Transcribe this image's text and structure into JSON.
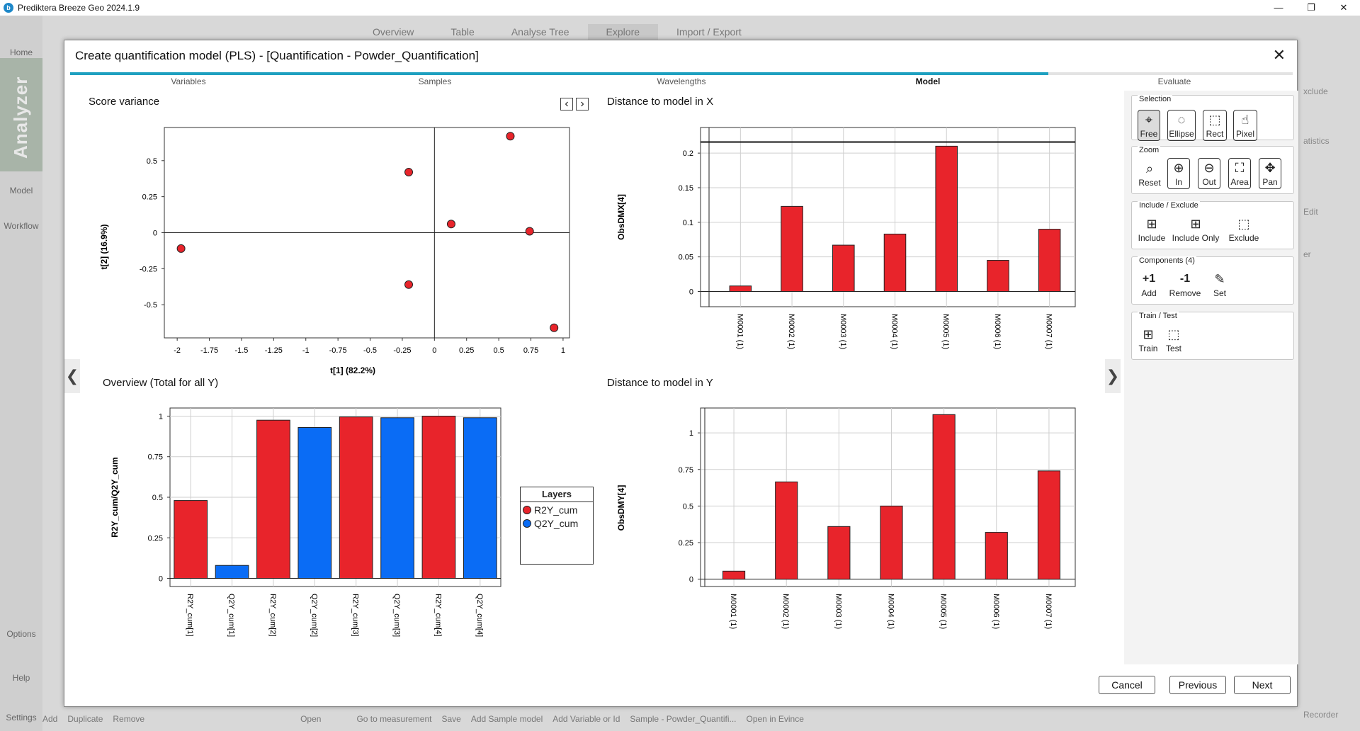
{
  "window": {
    "app_title": "Prediktera Breeze Geo 2024.1.9",
    "logo_letter": "b",
    "minimize": "—",
    "maximize": "❐",
    "close": "✕"
  },
  "background": {
    "nav": [
      "Home",
      "Model",
      "Workflow"
    ],
    "analyzer": "Analyzer",
    "bottom_nav": [
      "Options",
      "Help",
      "Settings"
    ],
    "tabs": [
      "Overview",
      "Table",
      "Analyse Tree",
      "Explore",
      "Import / Export"
    ],
    "bottom_actions": [
      "Add",
      "Duplicate",
      "Remove",
      "Open",
      "Go to measurement",
      "Save",
      "Add Sample model",
      "Add Variable or Id",
      "Sample - Powder_Quantifi...",
      "Open in Evince"
    ],
    "right_items": [
      "xclude",
      "atistics",
      "Edit",
      "er",
      "Recorder"
    ]
  },
  "dialog": {
    "title": "Create quantification model (PLS) - [Quantification - Powder_Quantification]",
    "close_label": "✕",
    "progress_fraction": 0.8,
    "steps": [
      "Variables",
      "Samples",
      "Wavelengths",
      "Model",
      "Evaluate"
    ],
    "active_step": "Model",
    "buttons": {
      "cancel": "Cancel",
      "previous": "Previous",
      "next": "Next"
    },
    "nav_prev": "❮",
    "nav_next": "❯"
  },
  "panels": {
    "score_variance": {
      "title": "Score variance",
      "prev_icon": "‹",
      "next_icon": "›"
    },
    "dist_x": {
      "title": "Distance to model in X"
    },
    "overview": {
      "title": "Overview (Total for all Y)"
    },
    "dist_y": {
      "title": "Distance to model in Y"
    }
  },
  "chart_data": [
    {
      "type": "scatter",
      "title": "Score variance",
      "xlabel": "t[1] (82.2%)",
      "ylabel": "t[2] (16.9%)",
      "xlim": [
        -2.1,
        1.05
      ],
      "ylim": [
        -0.73,
        0.73
      ],
      "xticks": [
        -2,
        -1.75,
        -1.5,
        -1.25,
        -1,
        -0.75,
        -0.5,
        -0.25,
        0,
        0.25,
        0.5,
        0.75,
        1
      ],
      "yticks": [
        0.5,
        0.25,
        0,
        -0.25,
        -0.5
      ],
      "color": "#e8242b",
      "points": [
        {
          "x": -1.97,
          "y": -0.11
        },
        {
          "x": -0.2,
          "y": 0.42
        },
        {
          "x": -0.2,
          "y": -0.36
        },
        {
          "x": 0.13,
          "y": 0.06
        },
        {
          "x": 0.59,
          "y": 0.67
        },
        {
          "x": 0.74,
          "y": 0.01
        },
        {
          "x": 0.93,
          "y": -0.66
        }
      ]
    },
    {
      "type": "bar",
      "title": "Distance to model in X",
      "ylabel": "ObsDMX[4]",
      "categories": [
        "M0001 (1)",
        "M0002 (1)",
        "M0003 (1)",
        "M0004 (1)",
        "M0005 (1)",
        "M0006 (1)",
        "M0007 (1)"
      ],
      "values": [
        0.008,
        0.123,
        0.067,
        0.083,
        0.21,
        0.045,
        0.09
      ],
      "ylim": [
        -0.022,
        0.237
      ],
      "yticks": [
        0,
        0.05,
        0.1,
        0.15,
        0.2
      ],
      "threshold": 0.216,
      "color": "#e8242b"
    },
    {
      "type": "bar",
      "title": "Overview (Total for all Y)",
      "ylabel": "R2Y_cum/Q2Y_cum",
      "categories": [
        "R2Y_cum[1]",
        "Q2Y_cum[1]",
        "R2Y_cum[2]",
        "Q2Y_cum[2]",
        "R2Y_cum[3]",
        "Q2Y_cum[3]",
        "R2Y_cum[4]",
        "Q2Y_cum[4]"
      ],
      "values": [
        0.48,
        0.08,
        0.975,
        0.93,
        0.995,
        0.99,
        1.0,
        0.99
      ],
      "series_of": [
        "R2Y_cum",
        "Q2Y_cum",
        "R2Y_cum",
        "Q2Y_cum",
        "R2Y_cum",
        "Q2Y_cum",
        "R2Y_cum",
        "Q2Y_cum"
      ],
      "ylim": [
        -0.05,
        1.05
      ],
      "yticks": [
        0,
        0.25,
        0.5,
        0.75,
        1
      ],
      "legend": {
        "title": "Layers",
        "items": [
          {
            "name": "R2Y_cum",
            "color": "#e8242b"
          },
          {
            "name": "Q2Y_cum",
            "color": "#0a6cf5"
          }
        ]
      }
    },
    {
      "type": "bar",
      "title": "Distance to model in Y",
      "ylabel": "ObsDMY[4]",
      "categories": [
        "M0001 (1)",
        "M0002 (1)",
        "M0003 (1)",
        "M0004 (1)",
        "M0005 (1)",
        "M0006 (1)",
        "M0007 (1)"
      ],
      "values": [
        0.055,
        0.665,
        0.36,
        0.5,
        1.125,
        0.32,
        0.74
      ],
      "ylim": [
        -0.05,
        1.17
      ],
      "yticks": [
        0,
        0.25,
        0.5,
        0.75,
        1
      ],
      "color": "#e8242b"
    }
  ],
  "toolpanel": {
    "selection": {
      "label": "Selection",
      "items": [
        {
          "label": "Free",
          "icon": "⌖"
        },
        {
          "label": "Ellipse",
          "icon": "◌"
        },
        {
          "label": "Rect",
          "icon": "⬚"
        },
        {
          "label": "Pixel",
          "icon": "☝"
        }
      ]
    },
    "zoom": {
      "label": "Zoom",
      "items": [
        {
          "label": "Reset",
          "icon": "⌕"
        },
        {
          "label": "In",
          "icon": "⊕"
        },
        {
          "label": "Out",
          "icon": "⊖"
        },
        {
          "label": "Area",
          "icon": "⛶"
        },
        {
          "label": "Pan",
          "icon": "✥"
        }
      ]
    },
    "include_exclude": {
      "label": "Include / Exclude",
      "items": [
        {
          "label": "Include",
          "icon": "⊞"
        },
        {
          "label": "Include Only",
          "icon": "⊞"
        },
        {
          "label": "Exclude",
          "icon": "⬚"
        }
      ]
    },
    "components": {
      "label": "Components (4)",
      "items": [
        {
          "label": "Add",
          "icon": "+1"
        },
        {
          "label": "Remove",
          "icon": "-1"
        },
        {
          "label": "Set",
          "icon": "✎"
        }
      ]
    },
    "train_test": {
      "label": "Train / Test",
      "items": [
        {
          "label": "Train",
          "icon": "⊞"
        },
        {
          "label": "Test",
          "icon": "⬚"
        }
      ]
    }
  }
}
